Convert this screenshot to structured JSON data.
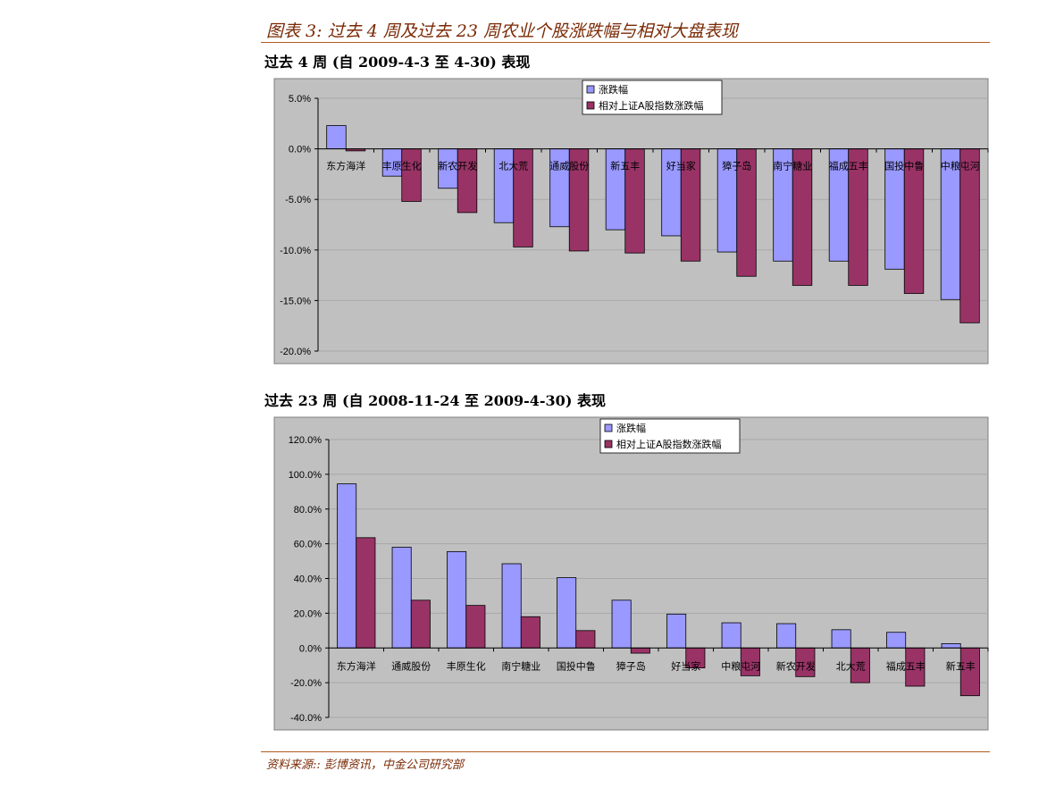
{
  "figure_title": "图表 3:  过去 4 周及过去 23 周农业个股涨跌幅与相对大盘表现",
  "source": "资料来源::  彭博资讯，中金公司研究部",
  "colors": {
    "series1": "#9999ff",
    "series2": "#993366",
    "plot_bg": "#c0c0c0",
    "accent": "#b25a1e"
  },
  "chart_data": [
    {
      "type": "bar",
      "title": "过去 4 周  (自 2009-4-3 至 4-30)  表现",
      "categories": [
        "东方海洋",
        "丰原生化",
        "新农开发",
        "北大荒",
        "通威股份",
        "新五丰",
        "好当家",
        "獐子岛",
        "南宁糖业",
        "福成五丰",
        "国投中鲁",
        "中粮屯河"
      ],
      "series": [
        {
          "name": "涨跌幅",
          "values": [
            2.3,
            -2.7,
            -3.9,
            -7.3,
            -7.7,
            -8.0,
            -8.6,
            -10.2,
            -11.1,
            -11.1,
            -11.9,
            -14.9
          ]
        },
        {
          "name": "相对上证A股指数涨跌幅",
          "values": [
            -0.2,
            -5.2,
            -6.3,
            -9.7,
            -10.1,
            -10.3,
            -11.1,
            -12.6,
            -13.5,
            -13.5,
            -14.3,
            -17.2
          ]
        }
      ],
      "ylim": [
        -20,
        5
      ],
      "yticks": [
        "5.0%",
        "0.0%",
        "-5.0%",
        "-10.0%",
        "-15.0%",
        "-20.0%"
      ],
      "legend": "top-center"
    },
    {
      "type": "bar",
      "title": "过去 23 周  (自 2008-11-24 至 2009-4-30)  表现",
      "categories": [
        "东方海洋",
        "通威股份",
        "丰原生化",
        "南宁糖业",
        "国投中鲁",
        "獐子岛",
        "好当家",
        "中粮屯河",
        "新农开发",
        "北大荒",
        "福成五丰",
        "新五丰"
      ],
      "series": [
        {
          "name": "涨跌幅",
          "values": [
            94.5,
            58.0,
            55.5,
            48.5,
            40.5,
            27.5,
            19.5,
            14.5,
            14.0,
            10.5,
            9.0,
            2.5
          ]
        },
        {
          "name": "相对上证A股指数涨跌幅",
          "values": [
            63.5,
            27.5,
            24.5,
            18.0,
            10.0,
            -3.0,
            -11.5,
            -16.0,
            -16.5,
            -20.0,
            -22.0,
            -27.5
          ]
        }
      ],
      "ylim": [
        -40,
        120
      ],
      "yticks": [
        "120.0%",
        "100.0%",
        "80.0%",
        "60.0%",
        "40.0%",
        "20.0%",
        "0.0%",
        "-20.0%",
        "-40.0%"
      ],
      "legend": "top-center"
    }
  ]
}
